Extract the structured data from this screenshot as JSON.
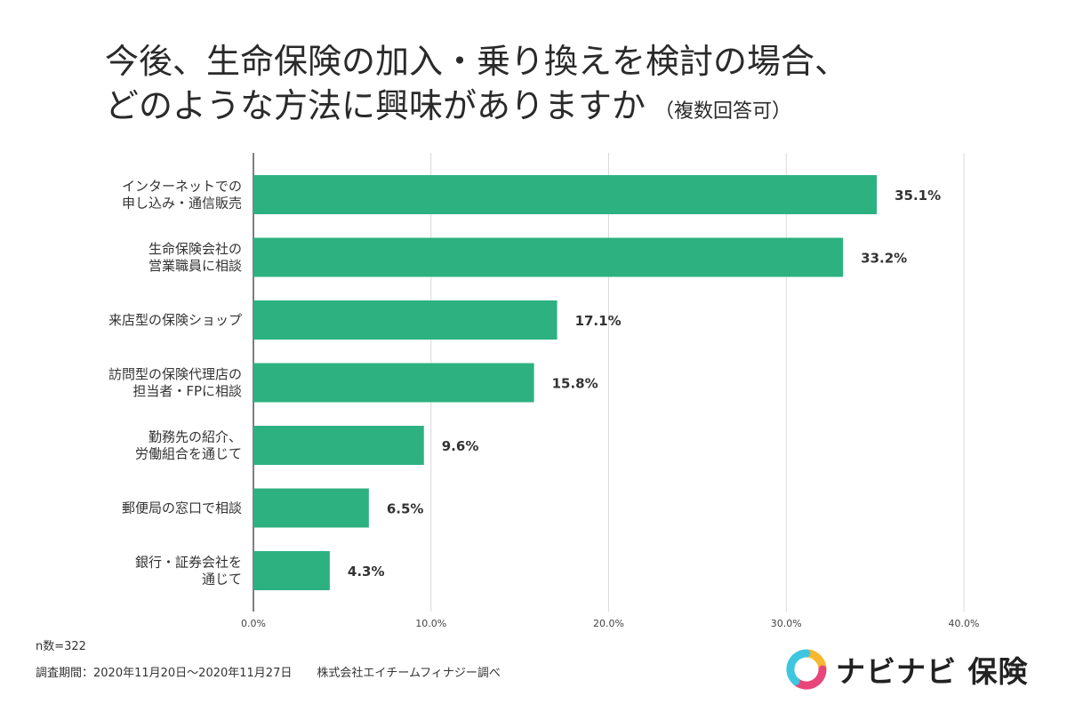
{
  "title": {
    "line1": "今後、生命保険の加入・乗り換えを検討の場合、",
    "line2": "どのような方法に興味がありますか",
    "note": "（複数回答可）"
  },
  "chart_data": {
    "type": "bar",
    "orientation": "horizontal",
    "categories": [
      [
        "インターネットでの",
        "申し込み・通信販売"
      ],
      [
        "生命保険会社の",
        "営業職員に相談"
      ],
      [
        "来店型の保険ショップ"
      ],
      [
        "訪問型の保険代理店の",
        "担当者・FPに相談"
      ],
      [
        "勤務先の紹介、",
        "労働組合を通じて"
      ],
      [
        "郵便局の窓口で相談"
      ],
      [
        "銀行・証券会社を",
        "通じて"
      ]
    ],
    "values": [
      35.1,
      33.2,
      17.1,
      15.8,
      9.6,
      6.5,
      4.3
    ],
    "value_labels": [
      "35.1%",
      "33.2%",
      "17.1%",
      "15.8%",
      "9.6%",
      "6.5%",
      "4.3%"
    ],
    "xlim": [
      0,
      40
    ],
    "ticks": [
      0,
      10,
      20,
      30,
      40
    ],
    "tick_labels": [
      "0.0%",
      "10.0%",
      "20.0%",
      "30.0%",
      "40.0%"
    ],
    "grid": true,
    "bar_color": "#2db181",
    "grid_color": "#d9d9d9"
  },
  "footer": {
    "n": "n数=322",
    "period": "調査期間：2020年11月20日～2020年11月27日",
    "credit": "株式会社エイチームフィナジー調べ"
  },
  "logo": {
    "text": "ナビナビ 保険",
    "icon": "ring-logo-icon",
    "colors": [
      "#f7b731",
      "#e8457a",
      "#3ec6e0"
    ]
  }
}
